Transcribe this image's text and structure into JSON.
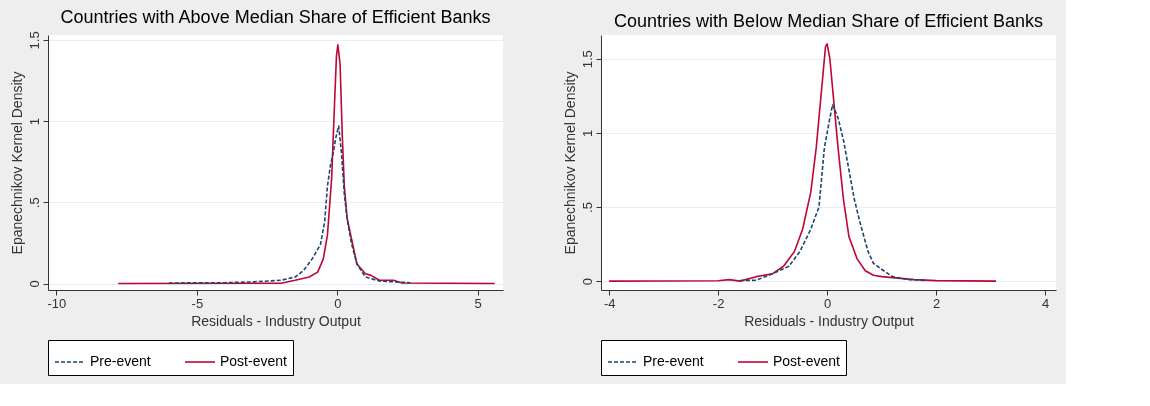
{
  "chart_data": [
    {
      "type": "line",
      "title": "Countries with Above Median Share of Efficient Banks",
      "xlabel": "Residuals - Industry Output",
      "ylabel": "Epanechnikov Kernel Density",
      "xlim": [
        -10.3,
        5.9
      ],
      "ylim": [
        -0.04,
        1.53
      ],
      "xticks": [
        -10,
        -5,
        0,
        5
      ],
      "yticks": [
        0,
        {
          "value": 0.5,
          "label": ".5"
        },
        1,
        1.5
      ],
      "grid": "y",
      "legend": "bottom",
      "marker": "none",
      "series": [
        {
          "name": "Pre-event",
          "color": "#1a476f",
          "line_style": "dashed",
          "x": [
            -6,
            -4,
            -3,
            -2,
            -1.5,
            -1.2,
            -0.9,
            -0.6,
            -0.45,
            -0.35,
            -0.25,
            -0.15,
            -0.05,
            0.05,
            0.15,
            0.25,
            0.35,
            0.5,
            0.7,
            1.0,
            1.5,
            2.6
          ],
          "values": [
            0.003,
            0.005,
            0.01,
            0.02,
            0.04,
            0.08,
            0.15,
            0.24,
            0.38,
            0.6,
            0.72,
            0.8,
            0.9,
            0.97,
            0.8,
            0.55,
            0.4,
            0.25,
            0.12,
            0.04,
            0.015,
            0.005
          ]
        },
        {
          "name": "Post-event",
          "color": "#c10534",
          "line_style": "solid",
          "x": [
            -7.8,
            -2,
            -1.5,
            -1,
            -0.7,
            -0.5,
            -0.35,
            -0.2,
            -0.1,
            -0.03,
            0.02,
            0.1,
            0.18,
            0.25,
            0.35,
            0.5,
            0.7,
            1.0,
            1.2,
            1.5,
            2,
            2.3,
            5.6
          ],
          "values": [
            0,
            0.002,
            0.02,
            0.04,
            0.07,
            0.15,
            0.3,
            0.65,
            1.1,
            1.4,
            1.47,
            1.35,
            0.9,
            0.6,
            0.4,
            0.28,
            0.12,
            0.06,
            0.05,
            0.02,
            0.02,
            0.003,
            0
          ]
        }
      ]
    },
    {
      "type": "line",
      "title": "Countries with Below Median Share of Efficient Banks",
      "xlabel": "Residuals - Industry Output",
      "ylabel": "Epanechnikov Kernel Density",
      "xlim": [
        -4.15,
        4.2
      ],
      "ylim": [
        -0.06,
        1.66
      ],
      "xticks": [
        -4,
        -2,
        0,
        2,
        4
      ],
      "yticks": [
        0,
        {
          "value": 0.5,
          "label": ".5"
        },
        1,
        1.5
      ],
      "grid": "y",
      "legend": "bottom",
      "marker": "none",
      "series": [
        {
          "name": "Pre-event",
          "color": "#1a476f",
          "line_style": "dashed",
          "x": [
            -1.6,
            -1.3,
            -1,
            -0.7,
            -0.5,
            -0.3,
            -0.15,
            -0.1,
            -0.05,
            0,
            0.05,
            0.1,
            0.2,
            0.3,
            0.4,
            0.5,
            0.6,
            0.75,
            0.85,
            1.0,
            1.2,
            1.5,
            1.8
          ],
          "values": [
            0.003,
            0.006,
            0.05,
            0.1,
            0.2,
            0.35,
            0.5,
            0.7,
            0.9,
            1.0,
            1.1,
            1.19,
            1.1,
            0.95,
            0.75,
            0.55,
            0.4,
            0.2,
            0.12,
            0.08,
            0.03,
            0.01,
            0.005
          ]
        },
        {
          "name": "Post-event",
          "color": "#c10534",
          "line_style": "solid",
          "x": [
            -4,
            -2,
            -1.8,
            -1.6,
            -1.3,
            -1,
            -0.8,
            -0.6,
            -0.45,
            -0.3,
            -0.2,
            -0.1,
            -0.03,
            0,
            0.05,
            0.1,
            0.2,
            0.3,
            0.4,
            0.55,
            0.7,
            0.85,
            1.0,
            1.3,
            1.6,
            2,
            3.1
          ],
          "values": [
            0,
            0.002,
            0.01,
            0,
            0.03,
            0.05,
            0.1,
            0.2,
            0.35,
            0.6,
            0.9,
            1.3,
            1.58,
            1.6,
            1.5,
            1.3,
            0.9,
            0.55,
            0.3,
            0.15,
            0.07,
            0.04,
            0.03,
            0.02,
            0.01,
            0.003,
            0
          ]
        }
      ]
    }
  ]
}
